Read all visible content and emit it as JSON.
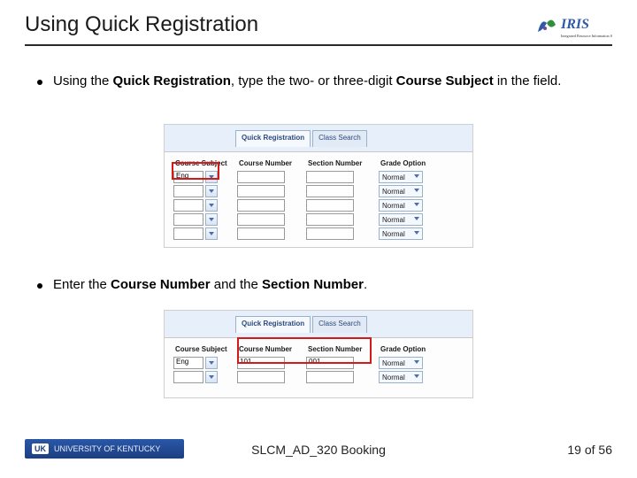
{
  "title": "Using Quick Registration",
  "iris": {
    "label": "IRIS",
    "tagline": "Integrated Resource Information System",
    "accent": "#2f5aa8",
    "green": "#2f8f3a"
  },
  "bullet1_parts": {
    "p0": "Using the ",
    "b0": "Quick Registration",
    "p1": ", type the two- or three-digit ",
    "b1": "Course Subject",
    "p2": " in the field."
  },
  "bullet2_parts": {
    "p0": "Enter the ",
    "b0": "Course Number",
    "p1": " and the ",
    "b1": "Section Number",
    "p2": "."
  },
  "tabs": {
    "active": "Quick Registration",
    "inactive": "Class Search"
  },
  "headers": {
    "subject": "Course Subject",
    "cnum": "Course Number",
    "snum": "Section Number",
    "gopt": "Grade Option"
  },
  "panel1": {
    "rows": [
      {
        "subject": "Eng",
        "cnum": "",
        "snum": "",
        "gopt": "Normal"
      },
      {
        "subject": "",
        "cnum": "",
        "snum": "",
        "gopt": "Normal"
      },
      {
        "subject": "",
        "cnum": "",
        "snum": "",
        "gopt": "Normal"
      },
      {
        "subject": "",
        "cnum": "",
        "snum": "",
        "gopt": "Normal"
      },
      {
        "subject": "",
        "cnum": "",
        "snum": "",
        "gopt": "Normal"
      }
    ]
  },
  "panel2": {
    "rows": [
      {
        "subject": "Eng",
        "cnum": "101",
        "snum": "001",
        "gopt": "Normal"
      },
      {
        "subject": "",
        "cnum": "",
        "snum": "",
        "gopt": "Normal"
      }
    ]
  },
  "footer": {
    "uk": "UK",
    "uni": "UNIVERSITY OF KENTUCKY",
    "center": "SLCM_AD_320 Booking",
    "right": "19 of 56"
  }
}
